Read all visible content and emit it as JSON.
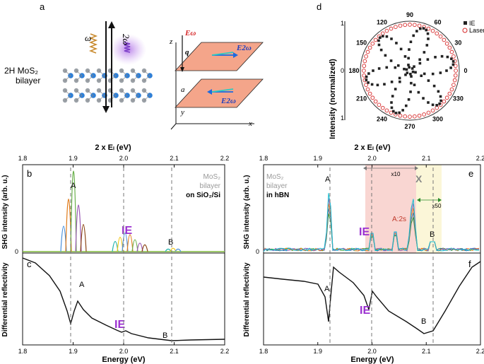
{
  "panels": {
    "a": {
      "letter": "a",
      "material": "2H  MoS₂",
      "layer": "bilayer",
      "omega": "ω",
      "two_omega": "2ω",
      "axis_z": "z",
      "axis_x": "x",
      "axis_y": "y",
      "q_label": "q",
      "a_label": "a",
      "E_omega": "Eω",
      "E_2omega": "E2ω"
    },
    "d": {
      "letter": "d",
      "ylabel": "Intensity (normalized)",
      "legend_ie": "IE",
      "legend_laser": "Laser",
      "angle_labels": [
        "90",
        "60",
        "30",
        "0",
        "330",
        "300",
        "270",
        "240",
        "210",
        "180",
        "150",
        "120"
      ],
      "radial_labels": [
        "1",
        "0",
        "1"
      ]
    },
    "b": {
      "letter": "b",
      "top_axis_label": "2 x Eₗ (eV)",
      "sample_line1": "MoS₂",
      "sample_line2": "bilayer",
      "sample_line3": "on SiO₂/Si",
      "peak_A": "A",
      "peak_IE": "IE",
      "peak_B": "B",
      "ylabel": "SHG intensity (arb. u.)",
      "y0": "0"
    },
    "c": {
      "letter": "c",
      "ylabel": "Differential reflectivity",
      "xlabel": "Energy (eV)",
      "peak_A": "A",
      "peak_IE": "IE",
      "peak_B": "B"
    },
    "e": {
      "letter": "e",
      "top_axis_label": "2 x Eₗ (eV)",
      "sample_line1": "MoS₂",
      "sample_line2": "bilayer",
      "sample_line3": "in hBN",
      "peak_A": "A",
      "peak_IE": "IE",
      "peak_A2s": "A:2s",
      "peak_X": "X",
      "peak_B": "B",
      "x10": "x10",
      "x50": "x50",
      "ylabel": "SHG intensity (arb. u.)",
      "y0": "0"
    },
    "f": {
      "letter": "f",
      "ylabel": "Differential reflectivity",
      "xlabel": "Energy (eV)",
      "peak_A": "A",
      "peak_IE": "IE",
      "peak_B": "B"
    }
  },
  "axis_ticks": [
    "1.8",
    "1.9",
    "2.0",
    "2.1",
    "2.2"
  ],
  "colors": {
    "ie_purple": "#9b30d0",
    "a_red": "#c0392b",
    "laser_red": "#d62728",
    "slab": "#f4a58a",
    "pink_band": "#f9d6d2",
    "yellow_band": "#fbf6d8"
  },
  "chart_data": [
    {
      "type": "line",
      "panel": "b",
      "xlabel": "",
      "ylabel": "SHG intensity (arb. u.)",
      "xlim": [
        1.8,
        2.2
      ],
      "peaks": [
        {
          "label": "A",
          "x": 1.935,
          "y": 1.0
        },
        {
          "label": "IE",
          "x": 2.02,
          "y": 0.22
        },
        {
          "label": "B",
          "x": 2.1,
          "y": 0.04
        }
      ]
    },
    {
      "type": "line",
      "panel": "c",
      "xlabel": "Energy (eV)",
      "ylabel": "Differential reflectivity",
      "xlim": [
        1.8,
        2.2
      ],
      "features": [
        {
          "label": "A",
          "x": 1.945
        },
        {
          "label": "IE",
          "x": 2.015
        },
        {
          "label": "B",
          "x": 2.1
        }
      ]
    },
    {
      "type": "line",
      "panel": "e",
      "xlabel": "",
      "ylabel": "SHG intensity (arb. u.)",
      "xlim": [
        1.8,
        2.2
      ],
      "peaks": [
        {
          "label": "A",
          "x": 1.925,
          "y": 0.92
        },
        {
          "label": "IE",
          "x": 1.995,
          "y": 0.12
        },
        {
          "label": "A:2s",
          "x": 2.055,
          "y": 0.25
        },
        {
          "label": "X",
          "x": 2.075,
          "y": 0.85
        },
        {
          "label": "B",
          "x": 2.11,
          "y": 0.12
        }
      ],
      "bands": [
        {
          "label": "x10",
          "from": 1.99,
          "to": 2.09
        },
        {
          "label": "x50",
          "from": 2.09,
          "to": 2.14
        }
      ]
    },
    {
      "type": "line",
      "panel": "f",
      "xlabel": "Energy (eV)",
      "ylabel": "Differential reflectivity",
      "xlim": [
        1.8,
        2.2
      ],
      "features": [
        {
          "label": "A",
          "x": 1.925
        },
        {
          "label": "IE",
          "x": 1.995
        },
        {
          "label": "B",
          "x": 2.11
        }
      ]
    },
    {
      "type": "scatter",
      "panel": "d",
      "series": [
        {
          "name": "IE",
          "description": "six-lobe polar pattern"
        },
        {
          "name": "Laser",
          "description": "near-circular"
        }
      ]
    }
  ]
}
